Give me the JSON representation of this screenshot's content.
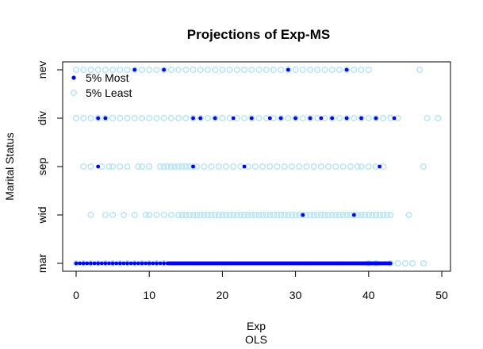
{
  "chart_data": {
    "type": "scatter",
    "title": "Projections of Exp-MS",
    "xlabel": "Exp",
    "xlabel_sub": "OLS",
    "ylabel": "Marital Status",
    "xlim": [
      -1.5,
      51
    ],
    "xticks": [
      0,
      10,
      20,
      30,
      40,
      50
    ],
    "xtick_labels": [
      "0",
      "10",
      "20",
      "30",
      "40",
      "50"
    ],
    "categories": [
      "mar",
      "wid",
      "sep",
      "div",
      "nev"
    ],
    "grid": false,
    "legend_position": "top-left",
    "series": [
      {
        "name": "5% Least",
        "color": "#b3e5f5",
        "marker": "open-circle",
        "rows": {
          "nev": [
            [
              0,
              40,
              1
            ],
            47
          ],
          "div": [
            [
              0,
              44,
              1
            ],
            48,
            49.5
          ],
          "sep": [
            1,
            2,
            3.5,
            4.5,
            5,
            6,
            7,
            8.5,
            9,
            10,
            [
              11.5,
              16,
              0.5
            ],
            [
              16.5,
              24,
              1
            ],
            [
              24.5,
              39,
              1
            ],
            39,
            40,
            41,
            42,
            47.5
          ],
          "wid": [
            2,
            4,
            5,
            6.5,
            8,
            9.5,
            10,
            11,
            12,
            13,
            [
              14,
              43,
              0.5
            ],
            45.5
          ],
          "mar": [
            [
              0,
              12,
              1
            ],
            40,
            41,
            43,
            44,
            45,
            46,
            47.5
          ]
        }
      },
      {
        "name": "5% Most",
        "color": "#0000ff",
        "marker": "filled-circle",
        "rows": {
          "nev": [
            8,
            12,
            29,
            37
          ],
          "div": [
            3,
            4,
            16,
            17,
            19,
            21.5,
            24,
            26.5,
            28,
            30,
            32,
            33.5,
            35,
            37,
            39,
            41,
            43.5
          ],
          "sep": [
            3,
            16,
            23,
            41.5
          ],
          "wid": [
            31,
            38
          ],
          "mar": [
            [
              0,
              12,
              0.5
            ],
            [
              12.5,
              43,
              0.12
            ]
          ]
        }
      }
    ]
  }
}
